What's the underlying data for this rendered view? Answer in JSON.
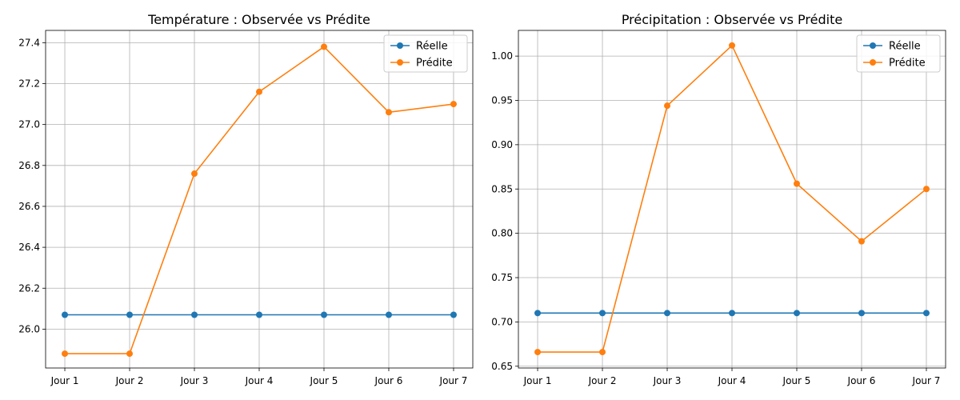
{
  "chart_data": [
    {
      "type": "line",
      "title": "Température : Observée vs Prédite",
      "categories": [
        "Jour 1",
        "Jour 2",
        "Jour 3",
        "Jour 4",
        "Jour 5",
        "Jour 6",
        "Jour 7"
      ],
      "series": [
        {
          "name": "Réelle",
          "color": "#1f77b4",
          "values": [
            26.07,
            26.07,
            26.07,
            26.07,
            26.07,
            26.07,
            26.07
          ]
        },
        {
          "name": "Prédite",
          "color": "#ff7f0e",
          "values": [
            25.88,
            25.88,
            26.76,
            27.16,
            27.38,
            27.06,
            27.1
          ]
        }
      ],
      "ylim": [
        25.81,
        27.46
      ],
      "yticks": [
        26.0,
        26.2,
        26.4,
        26.6,
        26.8,
        27.0,
        27.2,
        27.4
      ],
      "ytick_labels": [
        "26.0",
        "26.2",
        "26.4",
        "26.6",
        "26.8",
        "27.0",
        "27.2",
        "27.4"
      ],
      "grid": true,
      "legend": "top-right"
    },
    {
      "type": "line",
      "title": "Précipitation : Observée vs Prédite",
      "categories": [
        "Jour 1",
        "Jour 2",
        "Jour 3",
        "Jour 4",
        "Jour 5",
        "Jour 6",
        "Jour 7"
      ],
      "series": [
        {
          "name": "Réelle",
          "color": "#1f77b4",
          "values": [
            0.71,
            0.71,
            0.71,
            0.71,
            0.71,
            0.71,
            0.71
          ]
        },
        {
          "name": "Prédite",
          "color": "#ff7f0e",
          "values": [
            0.666,
            0.666,
            0.944,
            1.012,
            0.856,
            0.791,
            0.85
          ]
        }
      ],
      "ylim": [
        0.648,
        1.029
      ],
      "yticks": [
        0.65,
        0.7,
        0.75,
        0.8,
        0.85,
        0.9,
        0.95,
        1.0
      ],
      "ytick_labels": [
        "0.65",
        "0.70",
        "0.75",
        "0.80",
        "0.85",
        "0.90",
        "0.95",
        "1.00"
      ],
      "grid": true,
      "legend": "top-right"
    }
  ]
}
